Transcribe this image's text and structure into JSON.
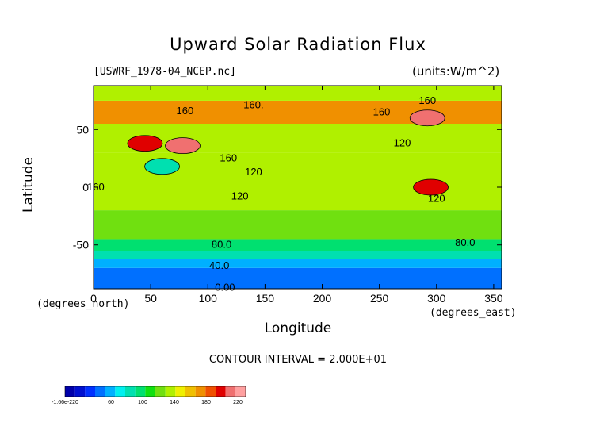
{
  "chart_data": {
    "type": "heatmap",
    "title": "Upward Solar Radiation Flux",
    "file_label": "[USWRF_1978-04_NCEP.nc]",
    "units_label": "(units:W/m^2)",
    "xlabel": "Longitude",
    "ylabel": "Latitude",
    "x_units": "(degrees_east)",
    "y_units": "(degrees_north)",
    "xlim": [
      0,
      357
    ],
    "ylim": [
      -88,
      88
    ],
    "x_ticks": [
      0,
      50,
      100,
      150,
      200,
      250,
      300,
      350
    ],
    "y_ticks": [
      50,
      0,
      -50
    ],
    "contour_interval_text": "CONTOUR INTERVAL = 2.000E+01",
    "contour_labels": [
      {
        "text": "160",
        "x": 80,
        "y": 66
      },
      {
        "text": "160.",
        "x": 140,
        "y": 71
      },
      {
        "text": "160",
        "x": 252,
        "y": 65
      },
      {
        "text": "160",
        "x": 292,
        "y": 75
      },
      {
        "text": "160",
        "x": 118,
        "y": 25
      },
      {
        "text": "120",
        "x": 140,
        "y": 13
      },
      {
        "text": "160",
        "x": 2,
        "y": 0
      },
      {
        "text": "120",
        "x": 128,
        "y": -8
      },
      {
        "text": "120",
        "x": 270,
        "y": 38
      },
      {
        "text": "120",
        "x": 300,
        "y": -10
      },
      {
        "text": "80.0",
        "x": 112,
        "y": -50
      },
      {
        "text": "80.0",
        "x": 325,
        "y": -48
      },
      {
        "text": "40.0",
        "x": 110,
        "y": -68
      },
      {
        "text": "0.00",
        "x": 115,
        "y": -87
      }
    ],
    "colorbar": {
      "tick_labels": [
        "-1.66e-220",
        "60",
        "100",
        "140",
        "180",
        "220"
      ],
      "colors": [
        "#0000aa",
        "#0010d0",
        "#0030ff",
        "#0070ff",
        "#00b0ff",
        "#00f0f0",
        "#00e0b0",
        "#00e070",
        "#10e010",
        "#70e010",
        "#b0f000",
        "#f0f000",
        "#f0c000",
        "#f09000",
        "#f05000",
        "#e00000",
        "#f07070",
        "#ffa0a0"
      ]
    },
    "value_bands": [
      {
        "lat_range": [
          -88,
          -70
        ],
        "value": 20
      },
      {
        "lat_range": [
          -70,
          -62
        ],
        "value": 40
      },
      {
        "lat_range": [
          -62,
          -55
        ],
        "value": 60
      },
      {
        "lat_range": [
          -55,
          -45
        ],
        "value": 80
      },
      {
        "lat_range": [
          -45,
          -20
        ],
        "value": 100
      },
      {
        "lat_range": [
          -20,
          0
        ],
        "value": 120
      },
      {
        "lat_range": [
          0,
          30
        ],
        "value": 120
      },
      {
        "lat_range": [
          30,
          55
        ],
        "value": 120
      },
      {
        "lat_range": [
          55,
          75
        ],
        "value": 160
      },
      {
        "lat_range": [
          75,
          88
        ],
        "value": 120
      }
    ],
    "hotspots": [
      {
        "lon": 292,
        "lat": 60,
        "value": 200
      },
      {
        "lon": 78,
        "lat": 36,
        "value": 200
      },
      {
        "lon": 45,
        "lat": 38,
        "value": 180
      },
      {
        "lon": 295,
        "lat": 0,
        "value": 180
      },
      {
        "lon": 60,
        "lat": 18,
        "value": 60
      }
    ]
  }
}
